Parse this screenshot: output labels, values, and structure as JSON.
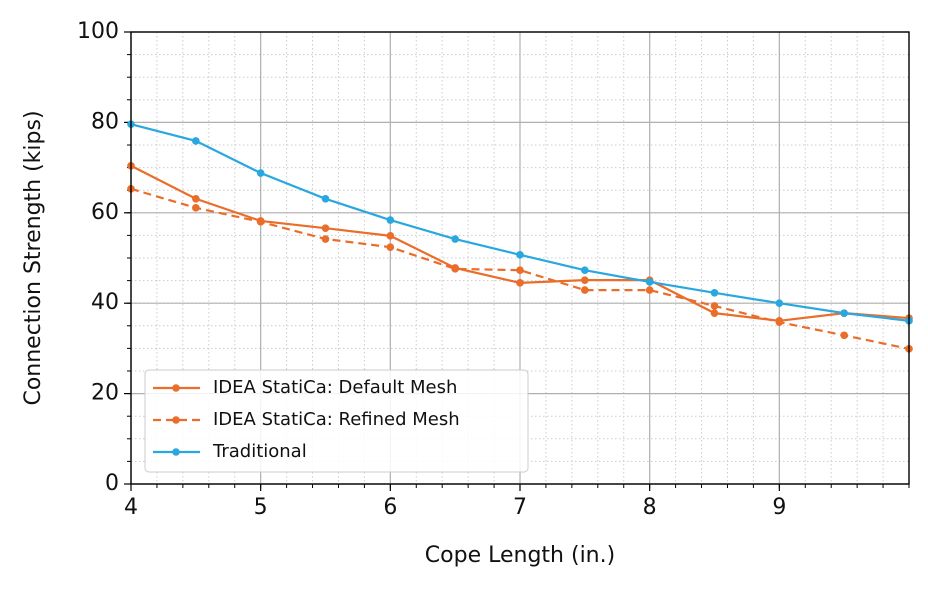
{
  "chart_data": {
    "type": "line",
    "xlabel": "Cope Length (in.)",
    "ylabel": "Connection Strength (kips)",
    "x": [
      4,
      4.5,
      5,
      5.5,
      6,
      6.5,
      7,
      7.5,
      8,
      8.5,
      9,
      9.5,
      10
    ],
    "series": [
      {
        "name": "IDEA StatiCa: Default Mesh",
        "color": "#ea6d2a",
        "dash": false,
        "values": [
          70.4,
          63.1,
          58.2,
          56.6,
          54.9,
          47.8,
          44.5,
          45.1,
          45.1,
          37.8,
          36.1,
          37.8,
          36.7
        ]
      },
      {
        "name": "IDEA StatiCa: Refined Mesh",
        "color": "#ea6d2a",
        "dash": true,
        "values": [
          65.3,
          61.1,
          58.0,
          54.2,
          52.4,
          47.6,
          47.3,
          42.9,
          42.9,
          39.4,
          35.8,
          32.9,
          29.9
        ]
      },
      {
        "name": "Traditional",
        "color": "#29a8e0",
        "dash": false,
        "values": [
          79.6,
          75.9,
          68.8,
          63.1,
          58.4,
          54.2,
          50.7,
          47.3,
          44.7,
          42.3,
          40.0,
          37.8,
          36.1
        ]
      }
    ],
    "xlim": [
      4,
      10
    ],
    "xticks": [
      4,
      5,
      6,
      7,
      8,
      9
    ],
    "ylim": [
      0,
      100
    ],
    "yticks": [
      0,
      20,
      40,
      60,
      80,
      100
    ],
    "grid": true,
    "minor_grid": true,
    "legend": "lower left"
  }
}
